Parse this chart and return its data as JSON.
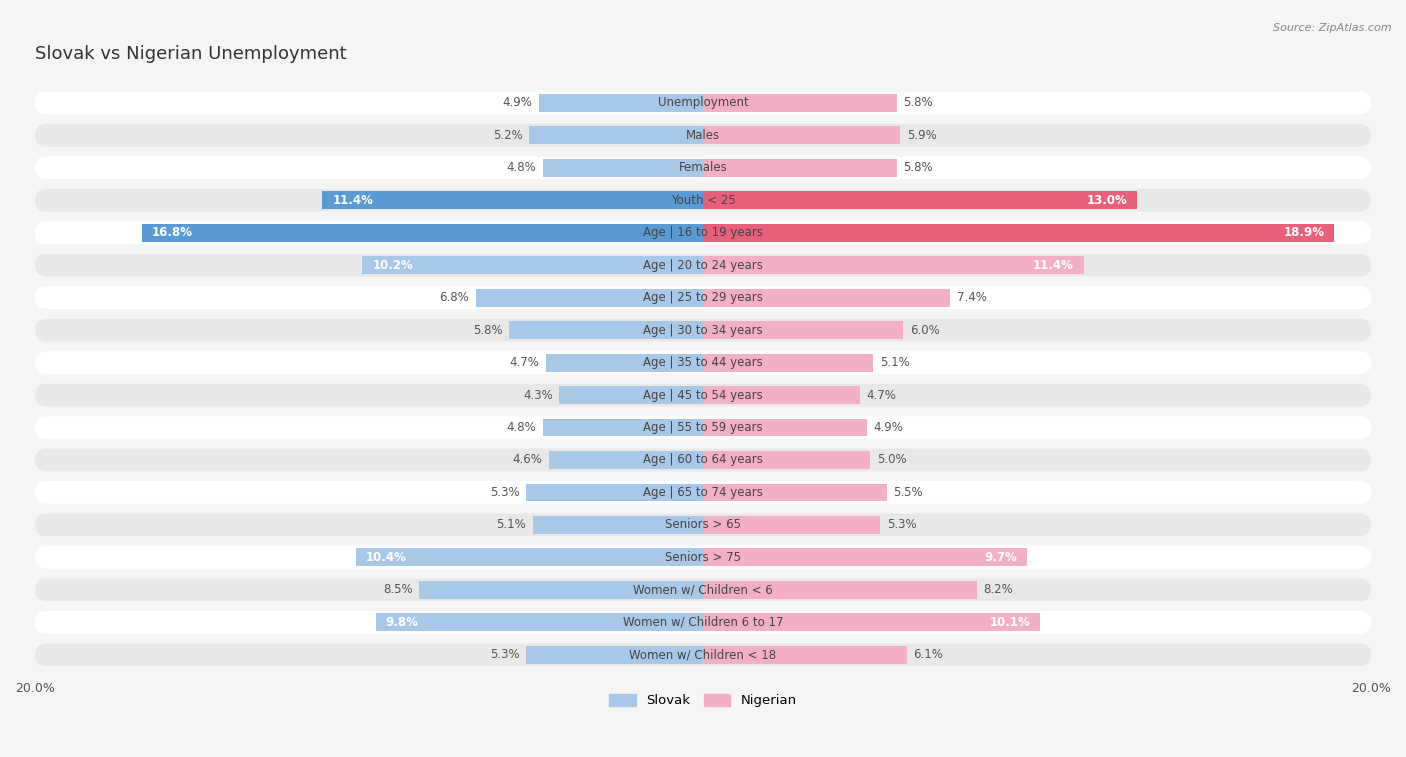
{
  "title": "Slovak vs Nigerian Unemployment",
  "source": "Source: ZipAtlas.com",
  "categories": [
    "Unemployment",
    "Males",
    "Females",
    "Youth < 25",
    "Age | 16 to 19 years",
    "Age | 20 to 24 years",
    "Age | 25 to 29 years",
    "Age | 30 to 34 years",
    "Age | 35 to 44 years",
    "Age | 45 to 54 years",
    "Age | 55 to 59 years",
    "Age | 60 to 64 years",
    "Age | 65 to 74 years",
    "Seniors > 65",
    "Seniors > 75",
    "Women w/ Children < 6",
    "Women w/ Children 6 to 17",
    "Women w/ Children < 18"
  ],
  "slovak_values": [
    4.9,
    5.2,
    4.8,
    11.4,
    16.8,
    10.2,
    6.8,
    5.8,
    4.7,
    4.3,
    4.8,
    4.6,
    5.3,
    5.1,
    10.4,
    8.5,
    9.8,
    5.3
  ],
  "nigerian_values": [
    5.8,
    5.9,
    5.8,
    13.0,
    18.9,
    11.4,
    7.4,
    6.0,
    5.1,
    4.7,
    4.9,
    5.0,
    5.5,
    5.3,
    9.7,
    8.2,
    10.1,
    6.1
  ],
  "slovak_color_normal": "#a8c8e8",
  "nigerian_color_normal": "#f4afc8",
  "slovak_color_highlight": "#5b9bd5",
  "nigerian_color_highlight": "#e8607a",
  "highlight_indices": [
    3,
    4
  ],
  "xlim": 20.0,
  "bar_height": 0.55,
  "background_color": "#f5f5f5",
  "row_bg_light": "#ffffff",
  "row_bg_dark": "#e8e8e8",
  "label_fontsize": 8.5,
  "value_fontsize": 8.5,
  "title_fontsize": 13,
  "source_fontsize": 8
}
